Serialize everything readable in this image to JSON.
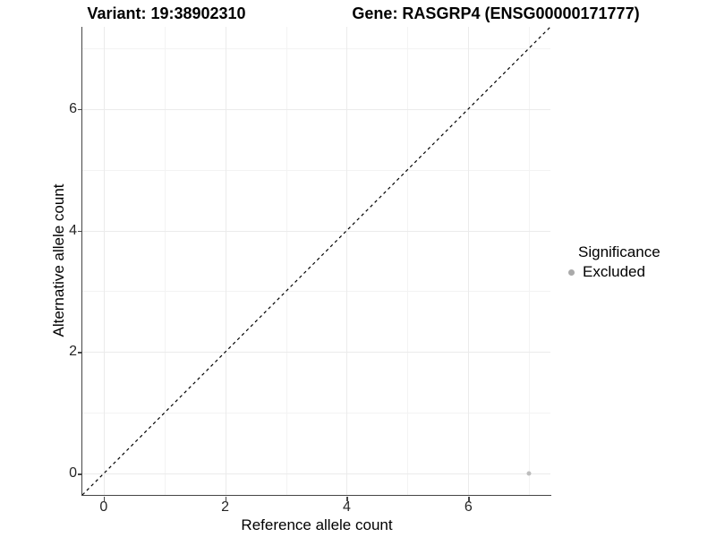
{
  "titles": {
    "variant": "Variant: 19:38902310",
    "gene": "Gene: RASGRP4 (ENSG00000171777)"
  },
  "legend": {
    "title": "Significance",
    "items": [
      {
        "label": "Excluded",
        "color": "#aaaaaa"
      }
    ]
  },
  "colors": {
    "axis_line": "#464646",
    "grid_major": "#ebebeb",
    "grid_minor": "#f3f3f3",
    "identity_line": "#000000",
    "excluded_point": "#bdbdbd"
  },
  "chart_data": {
    "type": "scatter",
    "title": "",
    "xlabel": "Reference allele count",
    "ylabel": "Alternative allele count",
    "xlim": [
      -0.35,
      7.35
    ],
    "ylim": [
      -0.35,
      7.35
    ],
    "x_ticks": [
      0,
      2,
      4,
      6
    ],
    "y_ticks": [
      0,
      2,
      4,
      6
    ],
    "x_minor_ticks": [
      1,
      3,
      5,
      7
    ],
    "y_minor_ticks": [
      1,
      3,
      5,
      7
    ],
    "grid": true,
    "legend_position": "right",
    "identity_line": {
      "style": "dashed",
      "x1": -0.35,
      "y1": -0.35,
      "x2": 7.35,
      "y2": 7.35
    },
    "series": [
      {
        "name": "Excluded",
        "color": "#bdbdbd",
        "point_size": 5,
        "points": [
          {
            "x": 7,
            "y": 0
          }
        ]
      }
    ]
  }
}
